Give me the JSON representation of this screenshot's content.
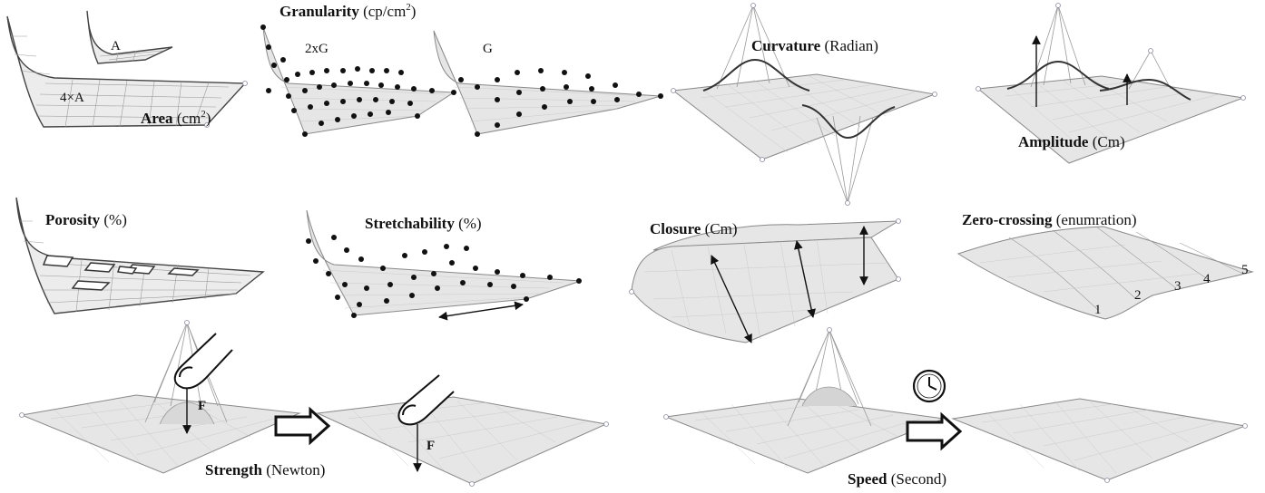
{
  "labels": {
    "area": {
      "bold": "Area",
      "unit": "(cm",
      "sup": "2",
      "close": ")",
      "small_a": "A",
      "big_a": "4×A"
    },
    "granularity": {
      "bold": "Granularity",
      "unit": "(cp/cm",
      "sup": "2",
      "close": ")",
      "left": "2xG",
      "right": "G"
    },
    "curvature": {
      "bold": "Curvature",
      "unit": "(Radian)"
    },
    "amplitude": {
      "bold": "Amplitude",
      "unit": "(Cm)"
    },
    "porosity": {
      "bold": "Porosity",
      "unit": "(%)"
    },
    "stretchability": {
      "bold": "Stretchability",
      "unit": "(%)"
    },
    "closure": {
      "bold": "Closure",
      "unit": "(Cm)"
    },
    "zero_crossing": {
      "bold": "Zero-crossing",
      "unit": "(enumration)",
      "counts": [
        "1",
        "2",
        "3",
        "4",
        "5"
      ]
    },
    "strength": {
      "bold": "Strength",
      "unit": "(Newton)",
      "force_1": "F",
      "force_2": "F"
    },
    "speed": {
      "bold": "Speed",
      "unit": "(Second)"
    }
  },
  "icons": [
    "finger-icon",
    "clock-icon",
    "right-arrow-icon",
    "double-arrow-icon"
  ],
  "colors": {
    "sheet": "#ececec",
    "outline": "#444444",
    "ink": "#111111"
  }
}
